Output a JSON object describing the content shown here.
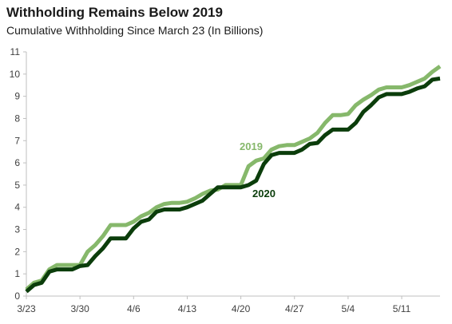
{
  "chart_data": {
    "type": "line",
    "title": "Withholding Remains Below 2019",
    "subtitle": "Cumulative Withholding Since March 23 (In Billions)",
    "xlabel": "",
    "ylabel": "",
    "ylim": [
      0,
      11
    ],
    "yticks": [
      0,
      1,
      2,
      3,
      4,
      5,
      6,
      7,
      8,
      9,
      10,
      11
    ],
    "xlim": [
      "3/23",
      "5/16"
    ],
    "xticks": [
      "3/23",
      "3/30",
      "4/6",
      "4/13",
      "4/20",
      "4/27",
      "5/4",
      "5/11"
    ],
    "grid": false,
    "legend": "inline labels",
    "colors": {
      "2019": "#86b86b",
      "2020": "#0b3d0b"
    },
    "series": [
      {
        "name": "2019",
        "x": [
          "3/23",
          "3/24",
          "3/25",
          "3/26",
          "3/27",
          "3/28",
          "3/29",
          "3/30",
          "3/31",
          "4/1",
          "4/2",
          "4/3",
          "4/4",
          "4/5",
          "4/6",
          "4/7",
          "4/8",
          "4/9",
          "4/10",
          "4/11",
          "4/12",
          "4/13",
          "4/14",
          "4/15",
          "4/16",
          "4/17",
          "4/18",
          "4/19",
          "4/20",
          "4/21",
          "4/22",
          "4/23",
          "4/24",
          "4/25",
          "4/26",
          "4/27",
          "4/28",
          "4/29",
          "4/30",
          "5/1",
          "5/2",
          "5/3",
          "5/4",
          "5/5",
          "5/6",
          "5/7",
          "5/8",
          "5/9",
          "5/10",
          "5/11",
          "5/12",
          "5/13",
          "5/14",
          "5/15",
          "5/16"
        ],
        "values": [
          0.3,
          0.6,
          0.7,
          1.2,
          1.4,
          1.4,
          1.4,
          1.4,
          2.0,
          2.3,
          2.7,
          3.2,
          3.2,
          3.2,
          3.35,
          3.6,
          3.75,
          4.0,
          4.15,
          4.2,
          4.2,
          4.25,
          4.4,
          4.6,
          4.75,
          4.8,
          5.0,
          5.0,
          5.0,
          5.85,
          6.1,
          6.2,
          6.6,
          6.75,
          6.8,
          6.8,
          6.95,
          7.1,
          7.35,
          7.8,
          8.15,
          8.15,
          8.2,
          8.6,
          8.85,
          9.05,
          9.3,
          9.4,
          9.4,
          9.4,
          9.5,
          9.65,
          9.8,
          10.1,
          10.35
        ]
      },
      {
        "name": "2020",
        "x": [
          "3/23",
          "3/24",
          "3/25",
          "3/26",
          "3/27",
          "3/28",
          "3/29",
          "3/30",
          "3/31",
          "4/1",
          "4/2",
          "4/3",
          "4/4",
          "4/5",
          "4/6",
          "4/7",
          "4/8",
          "4/9",
          "4/10",
          "4/11",
          "4/12",
          "4/13",
          "4/14",
          "4/15",
          "4/16",
          "4/17",
          "4/18",
          "4/19",
          "4/20",
          "4/21",
          "4/22",
          "4/23",
          "4/24",
          "4/25",
          "4/26",
          "4/27",
          "4/28",
          "4/29",
          "4/30",
          "5/1",
          "5/2",
          "5/3",
          "5/4",
          "5/5",
          "5/6",
          "5/7",
          "5/8",
          "5/9",
          "5/10",
          "5/11",
          "5/12",
          "5/13",
          "5/14",
          "5/15",
          "5/16"
        ],
        "values": [
          0.2,
          0.5,
          0.6,
          1.1,
          1.2,
          1.2,
          1.2,
          1.35,
          1.4,
          1.8,
          2.15,
          2.6,
          2.6,
          2.6,
          3.05,
          3.35,
          3.45,
          3.8,
          3.9,
          3.9,
          3.9,
          4.0,
          4.15,
          4.3,
          4.6,
          4.9,
          4.9,
          4.9,
          4.9,
          5.0,
          5.2,
          5.95,
          6.35,
          6.45,
          6.45,
          6.45,
          6.6,
          6.85,
          6.9,
          7.25,
          7.5,
          7.5,
          7.5,
          7.8,
          8.3,
          8.6,
          8.95,
          9.1,
          9.1,
          9.1,
          9.2,
          9.35,
          9.45,
          9.75,
          9.8
        ]
      }
    ],
    "annotations": [
      {
        "text": "2019",
        "series": "2019"
      },
      {
        "text": "2020",
        "series": "2020"
      }
    ]
  }
}
